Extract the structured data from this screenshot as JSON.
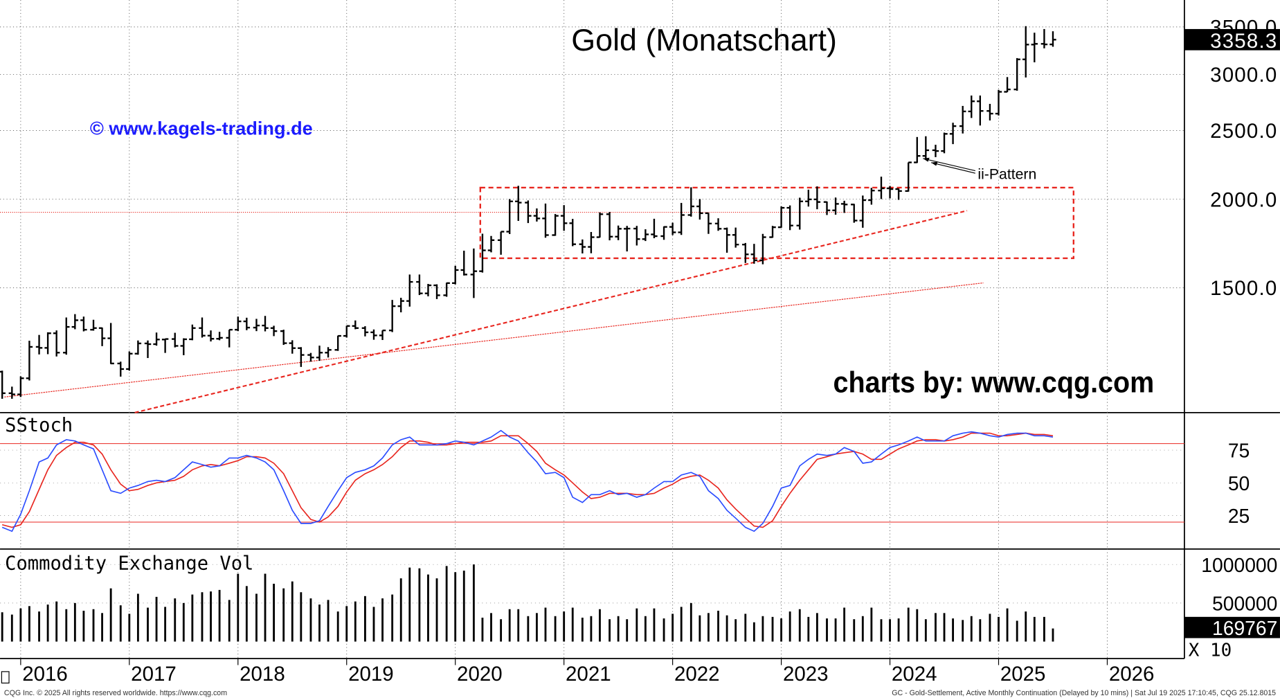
{
  "chart_data": [
    {
      "type": "ohlc",
      "title": "Gold (Monatschart)",
      "x": [
        2015.83,
        2015.92,
        2016.0,
        2016.08,
        2016.17,
        2016.25,
        2016.33,
        2016.42,
        2016.5,
        2016.58,
        2016.67,
        2016.75,
        2016.83,
        2016.92,
        2017.0,
        2017.08,
        2017.17,
        2017.25,
        2017.33,
        2017.42,
        2017.5,
        2017.58,
        2017.67,
        2017.75,
        2017.83,
        2017.92,
        2018.0,
        2018.08,
        2018.17,
        2018.25,
        2018.33,
        2018.42,
        2018.5,
        2018.58,
        2018.67,
        2018.75,
        2018.83,
        2018.92,
        2019.0,
        2019.08,
        2019.17,
        2019.25,
        2019.33,
        2019.42,
        2019.5,
        2019.58,
        2019.67,
        2019.75,
        2019.83,
        2019.92,
        2020.0,
        2020.08,
        2020.17,
        2020.25,
        2020.33,
        2020.42,
        2020.5,
        2020.58,
        2020.67,
        2020.75,
        2020.83,
        2020.92,
        2021.0,
        2021.08,
        2021.17,
        2021.25,
        2021.33,
        2021.42,
        2021.5,
        2021.58,
        2021.67,
        2021.75,
        2021.83,
        2021.92,
        2022.0,
        2022.08,
        2022.17,
        2022.25,
        2022.33,
        2022.42,
        2022.5,
        2022.58,
        2022.67,
        2022.75,
        2022.83,
        2022.92,
        2023.0,
        2023.08,
        2023.17,
        2023.25,
        2023.33,
        2023.42,
        2023.5,
        2023.58,
        2023.67,
        2023.75,
        2023.83,
        2023.92,
        2024.0,
        2024.08,
        2024.17,
        2024.25,
        2024.33,
        2024.42,
        2024.5,
        2024.58,
        2024.67,
        2024.75,
        2024.83,
        2024.92,
        2025.0,
        2025.08,
        2025.17,
        2025.25,
        2025.33,
        2025.42,
        2025.5
      ],
      "open": [
        1142,
        1065,
        1061,
        1118,
        1238,
        1234,
        1294,
        1215,
        1321,
        1350,
        1309,
        1316,
        1273,
        1173,
        1152,
        1211,
        1252,
        1249,
        1268,
        1270,
        1242,
        1269,
        1316,
        1284,
        1271,
        1275,
        1309,
        1345,
        1318,
        1327,
        1316,
        1303,
        1253,
        1233,
        1206,
        1196,
        1215,
        1226,
        1283,
        1325,
        1316,
        1298,
        1285,
        1306,
        1413,
        1437,
        1529,
        1473,
        1512,
        1464,
        1523,
        1589,
        1566,
        1583,
        1694,
        1751,
        1800,
        1986,
        1978,
        1895,
        1879,
        1780,
        1895,
        1850,
        1728,
        1713,
        1768,
        1905,
        1771,
        1817,
        1818,
        1757,
        1784,
        1774,
        1828,
        1796,
        1900,
        1954,
        1911,
        1848,
        1817,
        1781,
        1726,
        1672,
        1640,
        1768,
        1826,
        1945,
        1836,
        1986,
        1999,
        1982,
        1929,
        1970,
        1966,
        1866,
        1994,
        2057,
        2072,
        2067,
        2054,
        2254,
        2302,
        2345,
        2339,
        2473,
        2536,
        2660,
        2749,
        2664,
        2641,
        2835,
        2857,
        3150,
        3305,
        3313,
        3307
      ],
      "high": [
        1146,
        1088,
        1125,
        1263,
        1287,
        1298,
        1306,
        1362,
        1377,
        1366,
        1352,
        1318,
        1338,
        1180,
        1220,
        1264,
        1264,
        1297,
        1270,
        1296,
        1273,
        1331,
        1362,
        1306,
        1300,
        1309,
        1366,
        1361,
        1356,
        1369,
        1326,
        1309,
        1265,
        1237,
        1214,
        1243,
        1237,
        1284,
        1326,
        1349,
        1324,
        1310,
        1306,
        1442,
        1452,
        1566,
        1566,
        1519,
        1517,
        1525,
        1611,
        1692,
        1704,
        1788,
        1775,
        1800,
        2001,
        2089,
        1992,
        1941,
        1972,
        1906,
        1962,
        1876,
        1755,
        1798,
        1916,
        1919,
        1836,
        1834,
        1834,
        1814,
        1877,
        1831,
        1853,
        1976,
        2079,
        2001,
        1913,
        1880,
        1824,
        1824,
        1735,
        1730,
        1787,
        1834,
        1954,
        1960,
        2010,
        2063,
        2085,
        1985,
        2011,
        1990,
        1970,
        2024,
        2075,
        2152,
        2088,
        2071,
        2254,
        2448,
        2454,
        2387,
        2483,
        2564,
        2708,
        2801,
        2801,
        2726,
        2853,
        2974,
        3163,
        3509,
        3435,
        3476,
        3451
      ],
      "low": [
        1046,
        1046,
        1052,
        1110,
        1208,
        1209,
        1200,
        1207,
        1311,
        1302,
        1305,
        1241,
        1171,
        1124,
        1146,
        1207,
        1194,
        1243,
        1214,
        1236,
        1205,
        1265,
        1276,
        1260,
        1265,
        1236,
        1303,
        1307,
        1303,
        1302,
        1282,
        1246,
        1211,
        1160,
        1180,
        1183,
        1196,
        1222,
        1276,
        1311,
        1281,
        1267,
        1266,
        1299,
        1385,
        1411,
        1465,
        1459,
        1446,
        1457,
        1517,
        1561,
        1451,
        1576,
        1683,
        1670,
        1786,
        1864,
        1851,
        1860,
        1765,
        1776,
        1805,
        1717,
        1677,
        1678,
        1766,
        1750,
        1751,
        1688,
        1721,
        1746,
        1762,
        1753,
        1780,
        1781,
        1890,
        1872,
        1787,
        1805,
        1681,
        1709,
        1626,
        1622,
        1619,
        1765,
        1823,
        1809,
        1812,
        1953,
        1936,
        1900,
        1902,
        1913,
        1853,
        1823,
        1965,
        2001,
        2005,
        1996,
        2050,
        2250,
        2283,
        2293,
        2322,
        2392,
        2476,
        2604,
        2541,
        2583,
        2625,
        2832,
        2845,
        2970,
        3120,
        3265,
        3282
      ],
      "close": [
        1065,
        1061,
        1118,
        1238,
        1234,
        1294,
        1215,
        1321,
        1350,
        1309,
        1316,
        1273,
        1173,
        1152,
        1211,
        1252,
        1249,
        1268,
        1270,
        1242,
        1269,
        1316,
        1284,
        1271,
        1275,
        1309,
        1345,
        1318,
        1327,
        1316,
        1303,
        1253,
        1233,
        1206,
        1196,
        1215,
        1226,
        1283,
        1325,
        1316,
        1298,
        1285,
        1306,
        1413,
        1437,
        1529,
        1473,
        1512,
        1464,
        1523,
        1589,
        1566,
        1583,
        1694,
        1751,
        1800,
        1986,
        1978,
        1895,
        1879,
        1780,
        1895,
        1850,
        1728,
        1713,
        1768,
        1905,
        1771,
        1817,
        1818,
        1757,
        1784,
        1774,
        1828,
        1796,
        1900,
        1954,
        1911,
        1848,
        1817,
        1781,
        1726,
        1672,
        1640,
        1768,
        1826,
        1945,
        1836,
        1986,
        1999,
        1982,
        1929,
        1970,
        1966,
        1866,
        1994,
        2057,
        2072,
        2067,
        2054,
        2254,
        2302,
        2345,
        2339,
        2473,
        2536,
        2660,
        2749,
        2664,
        2641,
        2835,
        2857,
        3150,
        3305,
        3313,
        3307,
        3358.3
      ],
      "color": "#000000",
      "xlim": [
        2015.81,
        2026.71
      ],
      "xticks": [
        2016,
        2017,
        2018,
        2019,
        2020,
        2021,
        2022,
        2023,
        2024,
        2025,
        2026
      ],
      "ylim": [
        1000,
        3820
      ],
      "log_scale": true,
      "yticks": [
        {
          "value": 1500,
          "label": "1500.0"
        },
        {
          "value": 2000,
          "label": "2000.0"
        },
        {
          "value": 2500,
          "label": "2500.0"
        },
        {
          "value": 3000,
          "label": "3000.0"
        },
        {
          "value": 3500,
          "label": "3500.0"
        }
      ],
      "grid": true,
      "annotations": [
        "© www.kagels-trading.de",
        "charts by: www.cqg.com",
        "ii-Pattern"
      ],
      "rectangle": {
        "x": [
          2020.23,
          2025.69
        ],
        "y": [
          1651,
          2077
        ],
        "color": "#e8261f"
      },
      "trendlines": [
        {
          "x": [
            2017.05,
            2024.71
          ],
          "y": [
            1000,
            1927
          ],
          "color": "#e8261f",
          "style": "dashed"
        },
        {
          "x": [
            2015.85,
            2024.86
          ],
          "y": [
            1052,
            1524
          ],
          "color": "#e8261f",
          "style": "thin"
        }
      ],
      "hline": {
        "y": 1917,
        "x": [
          2015.81,
          2024.6
        ],
        "color": "#e8261f"
      }
    },
    {
      "type": "line",
      "title": "SStoch",
      "series": [
        {
          "color": "#2b4cff",
          "values": [
            16,
            13,
            26,
            44,
            66,
            69,
            79,
            83,
            82,
            79,
            76,
            60,
            44,
            42,
            46,
            48,
            51,
            52,
            51,
            54,
            60,
            66,
            64,
            62,
            63,
            69,
            69,
            71,
            69,
            66,
            60,
            44,
            29,
            19,
            19,
            21,
            32,
            44,
            54,
            58,
            60,
            63,
            69,
            79,
            83,
            85,
            79,
            79,
            79,
            80,
            82,
            81,
            79,
            82,
            85,
            90,
            85,
            82,
            73,
            66,
            57,
            58,
            54,
            39,
            35,
            41,
            41,
            44,
            41,
            42,
            39,
            41,
            46,
            51,
            51,
            56,
            58,
            55,
            44,
            38,
            29,
            23,
            16,
            13,
            19,
            32,
            46,
            48,
            63,
            68,
            72,
            71,
            72,
            77,
            74,
            65,
            66,
            72,
            77,
            79,
            82,
            85,
            82,
            82,
            82,
            86,
            88,
            89,
            88,
            86,
            85,
            87,
            88,
            88,
            86,
            86,
            85
          ]
        },
        {
          "color": "#e8261f",
          "values": [
            18,
            16,
            18,
            28,
            45,
            60,
            71,
            77,
            81,
            81,
            79,
            72,
            60,
            49,
            44,
            45,
            48,
            50,
            51,
            52,
            55,
            60,
            63,
            64,
            63,
            65,
            67,
            70,
            70,
            69,
            65,
            57,
            44,
            31,
            22,
            20,
            24,
            32,
            43,
            52,
            57,
            60,
            64,
            70,
            77,
            82,
            82,
            81,
            79,
            79,
            80,
            81,
            81,
            81,
            82,
            86,
            86,
            86,
            80,
            74,
            65,
            60,
            56,
            50,
            43,
            38,
            39,
            42,
            42,
            42,
            41,
            41,
            42,
            46,
            49,
            53,
            55,
            56,
            52,
            46,
            37,
            30,
            23,
            17,
            16,
            21,
            32,
            42,
            52,
            60,
            68,
            70,
            72,
            73,
            74,
            72,
            68,
            68,
            72,
            76,
            79,
            82,
            83,
            83,
            82,
            83,
            85,
            88,
            88,
            88,
            86,
            86,
            87,
            88,
            87,
            87,
            86
          ]
        }
      ],
      "ylim": [
        -0.6,
        103.7
      ],
      "yticks": [
        25,
        50,
        75
      ],
      "hlines": [
        80,
        20
      ],
      "grid": true
    },
    {
      "type": "bar",
      "title": "Commodity Exchange Vol",
      "scale_label": "X 10",
      "color": "#000000",
      "values": [
        380000,
        350000,
        430000,
        460000,
        390000,
        480000,
        520000,
        420000,
        500000,
        400000,
        420000,
        370000,
        690000,
        470000,
        360000,
        620000,
        440000,
        580000,
        450000,
        560000,
        500000,
        610000,
        640000,
        650000,
        670000,
        540000,
        880000,
        720000,
        620000,
        880000,
        750000,
        690000,
        780000,
        640000,
        560000,
        480000,
        540000,
        390000,
        460000,
        520000,
        590000,
        450000,
        560000,
        610000,
        820000,
        960000,
        950000,
        870000,
        820000,
        980000,
        900000,
        920000,
        1000000,
        310000,
        370000,
        290000,
        420000,
        420000,
        330000,
        370000,
        440000,
        330000,
        390000,
        440000,
        310000,
        330000,
        420000,
        290000,
        330000,
        290000,
        430000,
        330000,
        430000,
        300000,
        360000,
        450000,
        500000,
        340000,
        370000,
        400000,
        340000,
        290000,
        360000,
        250000,
        330000,
        320000,
        300000,
        390000,
        420000,
        320000,
        370000,
        300000,
        300000,
        440000,
        290000,
        330000,
        440000,
        290000,
        290000,
        300000,
        440000,
        420000,
        290000,
        370000,
        370000,
        300000,
        280000,
        330000,
        290000,
        360000,
        320000,
        430000,
        270000,
        390000,
        320000,
        320000,
        169767
      ],
      "ylim": [
        -220000,
        1200000
      ],
      "yticks": [
        500000,
        1000000
      ],
      "grid": true
    }
  ],
  "footer": {
    "left": "CQG Inc. © 2025 All rights reserved worldwide. https://www.cqg.com",
    "right": "GC - Gold-Settlement, Active Monthly Continuation (Delayed by 10 mins) | Sat Jul 19 2025 17:10:45, CQG 25.12.8015"
  }
}
